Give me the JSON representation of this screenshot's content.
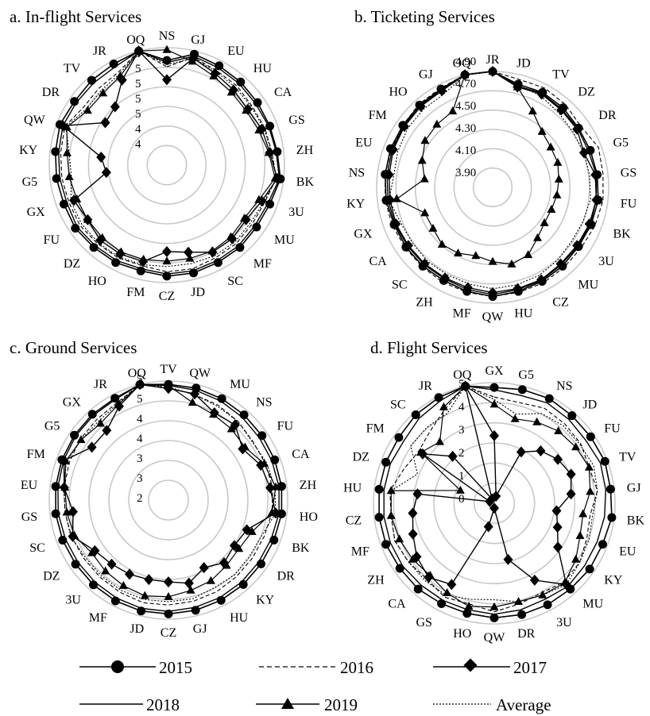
{
  "legend": {
    "series": [
      {
        "name": "2015",
        "line": "solid",
        "marker": "circle"
      },
      {
        "name": "2016",
        "line": "dashed",
        "marker": "none"
      },
      {
        "name": "2017",
        "line": "solid",
        "marker": "diamond"
      },
      {
        "name": "2018",
        "line": "solid",
        "marker": "none"
      },
      {
        "name": "2019",
        "line": "solid",
        "marker": "triangle"
      },
      {
        "name": "Average",
        "line": "dotted",
        "marker": "none"
      }
    ]
  },
  "colors": {
    "series": "#000000",
    "grid": "#c8c8c8",
    "background": "#ffffff"
  },
  "chart_data": [
    {
      "type": "radar",
      "title": "a. In-flight Services",
      "categories": [
        "NS",
        "GJ",
        "EU",
        "HU",
        "CA",
        "GS",
        "ZH",
        "BK",
        "3U",
        "MU",
        "MF",
        "SC",
        "JD",
        "CZ",
        "FM",
        "HO",
        "DZ",
        "FU",
        "GX",
        "G5",
        "KY",
        "QW",
        "DR",
        "TV",
        "JR",
        "OQ"
      ],
      "tick_labels": [
        "5",
        "5",
        "5",
        "5",
        "5",
        "4",
        "4"
      ],
      "rlim": [
        3.9,
        5.0
      ],
      "series": [
        {
          "name": "2015",
          "values": [
            4.88,
            4.97,
            4.95,
            4.94,
            4.93,
            4.93,
            4.94,
            4.97,
            4.93,
            4.92,
            4.93,
            4.93,
            4.94,
            4.94,
            4.92,
            4.93,
            4.93,
            4.94,
            4.93,
            4.94,
            4.95,
            4.97,
            4.95,
            4.96,
            4.97,
            5.0
          ]
        },
        {
          "name": "2016",
          "values": [
            4.82,
            4.94,
            4.9,
            4.89,
            4.87,
            4.88,
            4.89,
            4.93,
            4.88,
            4.87,
            4.88,
            4.88,
            4.9,
            4.9,
            4.87,
            4.88,
            4.88,
            4.89,
            4.88,
            4.89,
            4.9,
            4.92,
            4.85,
            4.86,
            4.88,
            5.0
          ]
        },
        {
          "name": "2017",
          "values": [
            4.7,
            4.93,
            4.87,
            4.84,
            4.82,
            4.85,
            4.87,
            4.94,
            4.85,
            4.8,
            4.82,
            4.82,
            4.74,
            4.71,
            4.83,
            4.84,
            4.84,
            4.8,
            4.83,
            4.47,
            4.52,
            4.94,
            4.6,
            4.63,
            4.8,
            5.0
          ]
        },
        {
          "name": "2018",
          "values": [
            4.86,
            4.95,
            4.93,
            4.92,
            4.91,
            4.92,
            4.93,
            4.96,
            4.91,
            4.9,
            4.91,
            4.91,
            4.92,
            4.92,
            4.9,
            4.91,
            4.91,
            4.92,
            4.9,
            4.91,
            4.92,
            4.94,
            4.93,
            4.93,
            4.94,
            5.0
          ]
        },
        {
          "name": "2019",
          "values": [
            4.98,
            4.9,
            4.84,
            4.81,
            4.8,
            4.82,
            4.86,
            4.92,
            4.82,
            4.78,
            4.8,
            4.81,
            4.8,
            4.8,
            4.81,
            4.82,
            4.81,
            4.8,
            4.8,
            4.82,
            4.84,
            4.9,
            4.8,
            4.8,
            4.84,
            5.0
          ]
        },
        {
          "name": "Average",
          "values": [
            4.84,
            4.93,
            4.89,
            4.87,
            4.86,
            4.87,
            4.89,
            4.93,
            4.87,
            4.85,
            4.86,
            4.86,
            4.85,
            4.85,
            4.86,
            4.87,
            4.87,
            4.87,
            4.86,
            4.8,
            4.82,
            4.91,
            4.82,
            4.83,
            4.86,
            5.0
          ]
        }
      ]
    },
    {
      "type": "radar",
      "title": "b. Ticketing Services",
      "categories": [
        "JR",
        "JD",
        "TV",
        "DZ",
        "DR",
        "G5",
        "GS",
        "FU",
        "BK",
        "3U",
        "MU",
        "CZ",
        "HU",
        "QW",
        "MF",
        "ZH",
        "SC",
        "CA",
        "GX",
        "KY",
        "NS",
        "EU",
        "FM",
        "HO",
        "GJ",
        "OQ"
      ],
      "tick_labels": [
        "4.90",
        "4.70",
        "4.50",
        "4.30",
        "4.10",
        "3.90"
      ],
      "rlim": [
        3.75,
        4.95
      ],
      "series": [
        {
          "name": "2015",
          "values": [
            4.95,
            4.85,
            4.86,
            4.85,
            4.83,
            4.83,
            4.84,
            4.85,
            4.84,
            4.83,
            4.84,
            4.85,
            4.86,
            4.88,
            4.86,
            4.84,
            4.84,
            4.84,
            4.84,
            4.86,
            4.87,
            4.88,
            4.88,
            4.89,
            4.9,
            4.95
          ]
        },
        {
          "name": "2016",
          "values": [
            4.95,
            4.9,
            4.91,
            4.89,
            4.86,
            4.92,
            4.9,
            4.9,
            4.88,
            4.86,
            4.86,
            4.87,
            4.87,
            4.88,
            4.87,
            4.86,
            4.85,
            4.85,
            4.86,
            4.87,
            4.87,
            4.87,
            4.88,
            4.9,
            4.91,
            4.95
          ]
        },
        {
          "name": "2017",
          "values": [
            4.95,
            4.82,
            4.84,
            4.82,
            4.81,
            4.76,
            4.82,
            4.83,
            4.82,
            4.81,
            4.81,
            4.83,
            4.83,
            4.84,
            4.82,
            4.81,
            4.81,
            4.81,
            4.82,
            4.82,
            4.83,
            4.85,
            4.86,
            4.87,
            4.88,
            4.95
          ]
        },
        {
          "name": "2018",
          "values": [
            4.95,
            4.83,
            4.85,
            4.83,
            4.82,
            4.81,
            4.83,
            4.83,
            4.83,
            4.82,
            4.82,
            4.84,
            4.84,
            4.86,
            4.84,
            4.82,
            4.82,
            4.82,
            4.83,
            4.84,
            4.85,
            4.86,
            4.87,
            4.88,
            4.89,
            4.95
          ]
        },
        {
          "name": "2019",
          "values": [
            4.95,
            4.82,
            4.64,
            4.52,
            4.48,
            4.47,
            4.44,
            4.42,
            4.4,
            4.4,
            4.45,
            4.54,
            4.57,
            4.52,
            4.48,
            4.52,
            4.54,
            4.5,
            4.5,
            4.75,
            4.46,
            4.53,
            4.6,
            4.62,
            4.64,
            4.95
          ]
        },
        {
          "name": "Average",
          "values": [
            4.95,
            4.84,
            4.82,
            4.78,
            4.76,
            4.76,
            4.76,
            4.77,
            4.75,
            4.74,
            4.76,
            4.78,
            4.79,
            4.8,
            4.78,
            4.77,
            4.77,
            4.76,
            4.77,
            4.83,
            4.78,
            4.8,
            4.82,
            4.83,
            4.84,
            4.95
          ]
        }
      ]
    },
    {
      "type": "radar",
      "title": "c. Ground Services",
      "categories": [
        "TV",
        "QW",
        "MU",
        "NS",
        "FU",
        "CA",
        "ZH",
        "HO",
        "BK",
        "DR",
        "KY",
        "HU",
        "GJ",
        "CZ",
        "JD",
        "MF",
        "3U",
        "DZ",
        "SC",
        "GS",
        "EU",
        "FM",
        "G5",
        "GX",
        "JR",
        "OQ"
      ],
      "tick_labels": [
        "5",
        "5",
        "4",
        "4",
        "3",
        "3",
        "2"
      ],
      "rlim": [
        1.8,
        5.0
      ],
      "series": [
        {
          "name": "2015",
          "values": [
            4.91,
            4.9,
            4.88,
            4.86,
            4.85,
            4.85,
            4.86,
            4.86,
            4.83,
            4.82,
            4.83,
            4.84,
            4.85,
            4.86,
            4.87,
            4.86,
            4.84,
            4.83,
            4.84,
            4.85,
            4.85,
            4.86,
            4.87,
            4.88,
            4.89,
            5.0
          ]
        },
        {
          "name": "2016",
          "values": [
            4.82,
            4.72,
            4.68,
            4.62,
            4.56,
            4.58,
            4.62,
            4.6,
            4.55,
            4.54,
            4.55,
            4.58,
            4.6,
            4.62,
            4.64,
            4.6,
            4.57,
            4.56,
            4.58,
            4.6,
            4.62,
            4.65,
            4.68,
            4.7,
            4.76,
            5.0
          ]
        },
        {
          "name": "2017",
          "values": [
            4.8,
            4.74,
            4.45,
            4.5,
            4.22,
            4.45,
            4.55,
            4.7,
            4.05,
            3.95,
            4.05,
            3.85,
            4.1,
            4.0,
            4.0,
            4.05,
            4.1,
            4.2,
            4.55,
            4.38,
            4.62,
            4.8,
            4.3,
            4.3,
            4.65,
            5.0
          ]
        },
        {
          "name": "2018",
          "values": [
            4.88,
            4.84,
            4.81,
            4.78,
            4.76,
            4.77,
            4.79,
            4.79,
            4.75,
            4.74,
            4.75,
            4.76,
            4.77,
            4.79,
            4.8,
            4.78,
            4.76,
            4.75,
            4.76,
            4.78,
            4.79,
            4.81,
            4.83,
            4.84,
            4.86,
            5.0
          ]
        },
        {
          "name": "2019",
          "values": [
            4.88,
            4.5,
            4.4,
            4.35,
            4.3,
            4.55,
            4.7,
            4.6,
            4.2,
            4.1,
            4.15,
            4.25,
            4.3,
            4.4,
            4.45,
            4.4,
            4.35,
            4.3,
            4.5,
            4.55,
            4.6,
            4.75,
            4.65,
            4.55,
            4.7,
            5.0
          ]
        },
        {
          "name": "Average",
          "values": [
            4.84,
            4.72,
            4.64,
            4.62,
            4.54,
            4.62,
            4.68,
            4.7,
            4.48,
            4.45,
            4.48,
            4.46,
            4.53,
            4.53,
            4.55,
            4.54,
            4.52,
            4.51,
            4.6,
            4.59,
            4.64,
            4.73,
            4.65,
            4.63,
            4.73,
            5.0
          ]
        }
      ]
    },
    {
      "type": "radar",
      "title": "d. Flight Services",
      "categories": [
        "GX",
        "G5",
        "NS",
        "JD",
        "FU",
        "TV",
        "GJ",
        "BK",
        "EU",
        "KY",
        "MU",
        "3U",
        "DR",
        "QW",
        "HO",
        "GS",
        "CA",
        "ZH",
        "MF",
        "CZ",
        "HU",
        "DZ",
        "FM",
        "SC",
        "JR",
        "OQ"
      ],
      "tick_labels": [
        "5",
        "4",
        "3",
        "2",
        "1",
        "0"
      ],
      "rlim": [
        0,
        5.0
      ],
      "series": [
        {
          "name": "2015",
          "values": [
            4.8,
            4.85,
            4.9,
            4.85,
            4.85,
            4.9,
            4.85,
            4.9,
            4.8,
            4.8,
            4.75,
            4.75,
            4.75,
            4.75,
            4.7,
            4.7,
            4.75,
            4.75,
            4.8,
            4.8,
            4.8,
            4.8,
            4.8,
            4.9,
            4.95,
            5.0
          ]
        },
        {
          "name": "2016",
          "values": [
            4.4,
            4.3,
            4.45,
            4.4,
            4.35,
            4.2,
            4.3,
            4.0,
            4.1,
            4.3,
            4.35,
            4.2,
            4.3,
            4.5,
            4.3,
            4.4,
            4.2,
            4.3,
            4.4,
            4.3,
            4.35,
            4.0,
            3.8,
            4.0,
            4.4,
            5.0
          ]
        },
        {
          "name": "2017",
          "values": [
            2.8,
            0.3,
            2.4,
            2.9,
            3.2,
            3.4,
            3.2,
            2.6,
            2.8,
            3.2,
            4.5,
            3.6,
            2.4,
            0.2,
            1.0,
            3.8,
            4.1,
            3.9,
            3.6,
            3.4,
            3.2,
            0.2,
            3.6,
            2.6,
            0.2,
            5.0
          ]
        },
        {
          "name": "2018",
          "values": [
            4.7,
            4.6,
            4.7,
            4.65,
            4.6,
            4.7,
            4.65,
            4.6,
            4.55,
            4.55,
            4.6,
            4.5,
            4.55,
            4.6,
            4.55,
            4.55,
            4.55,
            4.6,
            4.6,
            4.6,
            4.6,
            4.6,
            4.55,
            4.7,
            4.8,
            5.0
          ]
        },
        {
          "name": "2019",
          "values": [
            4.1,
            3.6,
            3.8,
            4.0,
            4.1,
            4.2,
            4.0,
            3.7,
            3.8,
            4.1,
            4.4,
            4.3,
            4.2,
            4.3,
            4.4,
            4.2,
            4.0,
            4.1,
            4.2,
            4.3,
            4.3,
            1.5,
            3.7,
            3.4,
            4.5,
            5.0
          ]
        },
        {
          "name": "Average",
          "values": [
            4.3,
            3.8,
            4.2,
            4.3,
            4.3,
            4.4,
            4.3,
            4.1,
            4.2,
            4.3,
            4.5,
            4.3,
            4.2,
            4.0,
            4.1,
            4.3,
            4.3,
            4.3,
            4.4,
            4.3,
            4.3,
            3.4,
            4.2,
            4.2,
            4.2,
            5.0
          ]
        }
      ]
    }
  ]
}
